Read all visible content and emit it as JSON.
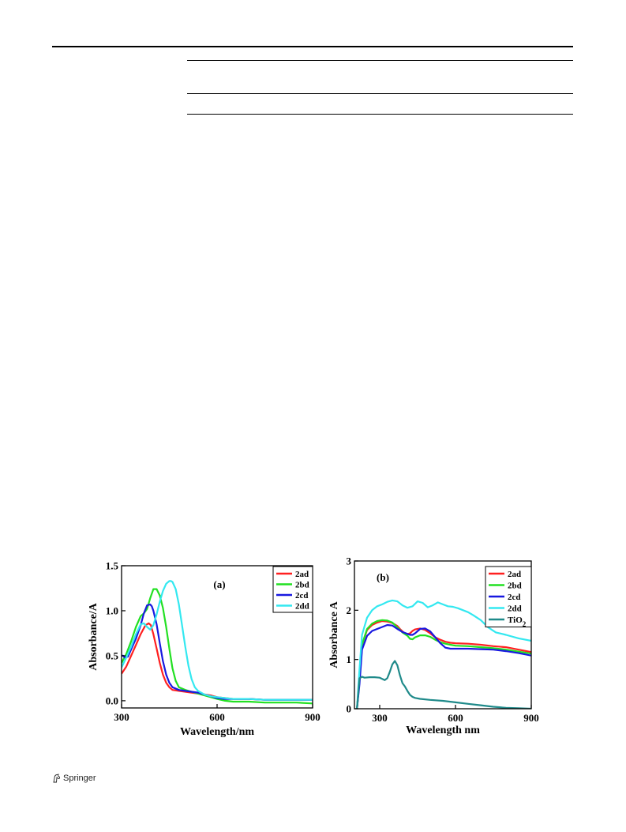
{
  "footer": {
    "publisher": "Springer",
    "logo_icon": "springer-horse-icon"
  },
  "chart_data": [
    {
      "type": "line",
      "panel_label": "(a)",
      "xlabel": "Wavelength/nm",
      "ylabel": "Absorbance/A",
      "xlim": [
        300,
        900
      ],
      "ylim": [
        -0.08,
        1.5
      ],
      "xticks": [
        300,
        600,
        900
      ],
      "yticks": [
        0.0,
        0.5,
        1.0,
        1.5
      ],
      "ytick_labels": [
        "0.0",
        "0.5",
        "1.0",
        "1.5"
      ],
      "legend": "top-right",
      "series": [
        {
          "name": "2ad",
          "color": "#ff2020",
          "x": [
            300,
            315,
            330,
            345,
            360,
            375,
            385,
            392,
            400,
            410,
            420,
            430,
            440,
            450,
            460,
            480,
            500,
            520,
            540,
            560,
            580,
            600,
            625,
            650,
            700,
            750,
            800,
            850,
            900
          ],
          "y": [
            0.3,
            0.38,
            0.5,
            0.62,
            0.74,
            0.84,
            0.86,
            0.84,
            0.74,
            0.58,
            0.42,
            0.29,
            0.2,
            0.15,
            0.12,
            0.11,
            0.1,
            0.09,
            0.08,
            0.07,
            0.06,
            0.04,
            0.03,
            0.02,
            0.02,
            0.01,
            0.01,
            0.01,
            0.01
          ]
        },
        {
          "name": "2bd",
          "color": "#22e022",
          "x": [
            300,
            315,
            330,
            345,
            360,
            370,
            380,
            390,
            400,
            410,
            420,
            430,
            440,
            450,
            460,
            470,
            480,
            500,
            520,
            540,
            560,
            580,
            600,
            625,
            650,
            700,
            750,
            800,
            850,
            900
          ],
          "y": [
            0.42,
            0.52,
            0.66,
            0.82,
            0.94,
            0.97,
            1.02,
            1.14,
            1.24,
            1.24,
            1.17,
            1.03,
            0.82,
            0.58,
            0.36,
            0.22,
            0.15,
            0.12,
            0.1,
            0.08,
            0.06,
            0.04,
            0.02,
            0.0,
            -0.01,
            -0.01,
            -0.02,
            -0.02,
            -0.02,
            -0.03
          ]
        },
        {
          "name": "2cd",
          "color": "#1818e0",
          "x": [
            300,
            305,
            310,
            320,
            330,
            345,
            360,
            370,
            380,
            390,
            395,
            400,
            410,
            420,
            430,
            440,
            450,
            460,
            480,
            500,
            520,
            540,
            560,
            580,
            600,
            625,
            650,
            700,
            750,
            800,
            850,
            900
          ],
          "y": [
            0.5,
            0.5,
            0.48,
            0.49,
            0.57,
            0.69,
            0.84,
            0.97,
            1.06,
            1.07,
            1.05,
            1.0,
            0.85,
            0.64,
            0.44,
            0.29,
            0.2,
            0.15,
            0.12,
            0.11,
            0.1,
            0.09,
            0.07,
            0.05,
            0.03,
            0.02,
            0.02,
            0.02,
            0.01,
            0.01,
            0.01,
            0.01
          ]
        },
        {
          "name": "2dd",
          "color": "#33e8f0",
          "x": [
            300,
            315,
            330,
            345,
            360,
            370,
            380,
            390,
            400,
            410,
            420,
            430,
            440,
            450,
            455,
            460,
            470,
            480,
            490,
            500,
            510,
            520,
            530,
            540,
            560,
            580,
            600,
            625,
            650,
            700,
            750,
            800,
            850,
            900
          ],
          "y": [
            0.37,
            0.48,
            0.6,
            0.74,
            0.85,
            0.86,
            0.82,
            0.79,
            0.84,
            0.96,
            1.1,
            1.22,
            1.3,
            1.33,
            1.33,
            1.32,
            1.24,
            1.07,
            0.84,
            0.6,
            0.39,
            0.24,
            0.15,
            0.11,
            0.07,
            0.05,
            0.04,
            0.03,
            0.02,
            0.02,
            0.01,
            0.01,
            0.01,
            0.01
          ]
        }
      ]
    },
    {
      "type": "line",
      "panel_label": "(b)",
      "xlabel": "Wavelength nm",
      "ylabel": "Absorbance A",
      "xlim": [
        200,
        900
      ],
      "ylim": [
        0,
        3
      ],
      "xticks": [
        300,
        600,
        900
      ],
      "yticks": [
        0,
        1,
        2,
        3
      ],
      "ytick_labels": [
        "0",
        "1",
        "2",
        "3"
      ],
      "legend": "top-right",
      "series": [
        {
          "name": "2ad",
          "color": "#ff2020",
          "x": [
            210,
            220,
            230,
            250,
            270,
            290,
            310,
            330,
            350,
            370,
            380,
            390,
            400,
            410,
            420,
            430,
            440,
            460,
            480,
            500,
            520,
            540,
            560,
            580,
            600,
            650,
            700,
            750,
            800,
            850,
            900
          ],
          "y": [
            0.0,
            0.6,
            1.3,
            1.6,
            1.7,
            1.75,
            1.78,
            1.77,
            1.74,
            1.68,
            1.62,
            1.57,
            1.53,
            1.52,
            1.53,
            1.58,
            1.61,
            1.63,
            1.6,
            1.53,
            1.45,
            1.4,
            1.36,
            1.34,
            1.33,
            1.32,
            1.3,
            1.27,
            1.25,
            1.2,
            1.15
          ]
        },
        {
          "name": "2bd",
          "color": "#22e022",
          "x": [
            210,
            220,
            230,
            250,
            270,
            290,
            310,
            330,
            350,
            370,
            390,
            410,
            420,
            430,
            440,
            460,
            480,
            500,
            520,
            540,
            560,
            580,
            600,
            650,
            700,
            750,
            800,
            850,
            900
          ],
          "y": [
            0.0,
            0.6,
            1.3,
            1.62,
            1.73,
            1.78,
            1.8,
            1.79,
            1.75,
            1.65,
            1.55,
            1.48,
            1.42,
            1.41,
            1.45,
            1.49,
            1.49,
            1.46,
            1.4,
            1.35,
            1.32,
            1.3,
            1.28,
            1.27,
            1.25,
            1.23,
            1.2,
            1.16,
            1.12
          ]
        },
        {
          "name": "2cd",
          "color": "#1818e0",
          "x": [
            210,
            220,
            230,
            250,
            270,
            290,
            310,
            330,
            350,
            370,
            390,
            410,
            420,
            430,
            440,
            460,
            480,
            500,
            520,
            540,
            560,
            580,
            600,
            650,
            700,
            750,
            800,
            850,
            900
          ],
          "y": [
            0.0,
            0.5,
            1.2,
            1.48,
            1.58,
            1.62,
            1.66,
            1.7,
            1.69,
            1.62,
            1.56,
            1.52,
            1.5,
            1.5,
            1.53,
            1.62,
            1.63,
            1.57,
            1.45,
            1.33,
            1.24,
            1.22,
            1.22,
            1.22,
            1.21,
            1.2,
            1.17,
            1.13,
            1.08
          ]
        },
        {
          "name": "2dd",
          "color": "#33e8f0",
          "x": [
            210,
            220,
            230,
            250,
            270,
            290,
            310,
            330,
            350,
            370,
            390,
            410,
            430,
            450,
            470,
            490,
            510,
            530,
            550,
            570,
            590,
            610,
            630,
            650,
            670,
            700,
            730,
            760,
            800,
            850,
            900
          ],
          "y": [
            0.0,
            0.8,
            1.5,
            1.85,
            2.0,
            2.08,
            2.12,
            2.17,
            2.2,
            2.18,
            2.1,
            2.05,
            2.08,
            2.18,
            2.15,
            2.06,
            2.1,
            2.16,
            2.12,
            2.08,
            2.07,
            2.04,
            2.0,
            1.96,
            1.9,
            1.8,
            1.65,
            1.55,
            1.5,
            1.43,
            1.38
          ]
        },
        {
          "name": "TiO2",
          "color": "#1f8a8a",
          "x": [
            210,
            215,
            220,
            230,
            240,
            260,
            280,
            300,
            320,
            330,
            340,
            350,
            360,
            370,
            380,
            390,
            400,
            410,
            420,
            430,
            440,
            460,
            500,
            550,
            600,
            650,
            700,
            750,
            800,
            850,
            900
          ],
          "y": [
            0.0,
            0.3,
            0.62,
            0.65,
            0.63,
            0.64,
            0.64,
            0.63,
            0.58,
            0.62,
            0.75,
            0.9,
            0.97,
            0.88,
            0.68,
            0.52,
            0.45,
            0.36,
            0.28,
            0.24,
            0.22,
            0.2,
            0.18,
            0.16,
            0.13,
            0.1,
            0.07,
            0.04,
            0.02,
            0.01,
            0.0
          ]
        }
      ]
    }
  ]
}
